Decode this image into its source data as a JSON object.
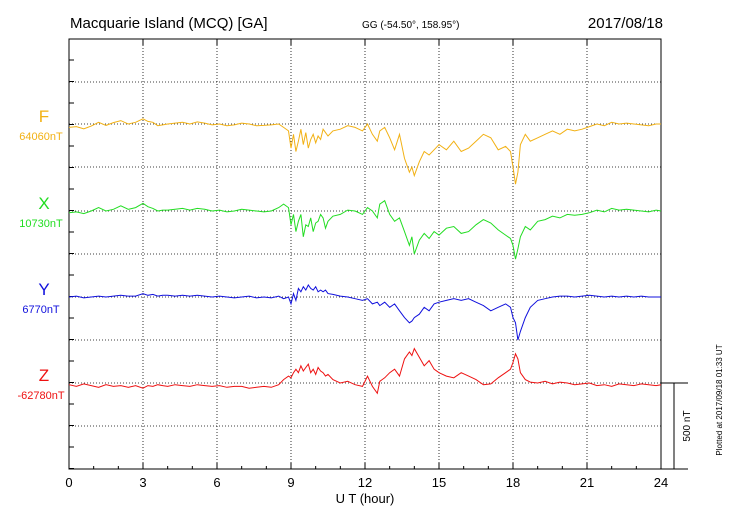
{
  "chart_data": {
    "type": "line",
    "station": "Macquarie Island (MCQ)  [GA]",
    "coords": "GG (-54.50°, 158.95°)",
    "date": "2017/08/18",
    "xlabel": "U T (hour)",
    "xlim": [
      0,
      24
    ],
    "xticks": [
      "0",
      "3",
      "6",
      "9",
      "12",
      "15",
      "18",
      "21",
      "24"
    ],
    "grid": true,
    "scale_label": "500 nT",
    "scale_nT": 500,
    "plotted_note": "Plotted at 2017/09/18 01:33 UT",
    "series": [
      {
        "name": "F",
        "base_label": "64060nT",
        "color": "#f2b114",
        "x": [
          0,
          0.3,
          0.6,
          0.9,
          1.2,
          1.5,
          1.8,
          2.1,
          2.4,
          2.7,
          3.0,
          3.2,
          3.4,
          3.6,
          3.8,
          4.0,
          4.3,
          4.6,
          4.9,
          5.2,
          5.5,
          5.8,
          6.1,
          6.4,
          6.7,
          7.0,
          7.3,
          7.6,
          7.9,
          8.2,
          8.5,
          8.7,
          8.9,
          9.0,
          9.1,
          9.2,
          9.3,
          9.4,
          9.5,
          9.6,
          9.7,
          9.8,
          9.9,
          10.0,
          10.1,
          10.2,
          10.3,
          10.4,
          10.5,
          10.7,
          11.0,
          11.3,
          11.6,
          11.9,
          12.1,
          12.3,
          12.5,
          12.6,
          12.8,
          13.0,
          13.2,
          13.4,
          13.6,
          13.8,
          13.9,
          14.0,
          14.2,
          14.4,
          14.6,
          14.8,
          15.0,
          15.3,
          15.6,
          15.9,
          16.2,
          16.5,
          16.8,
          17.1,
          17.4,
          17.7,
          17.9,
          18.0,
          18.1,
          18.2,
          18.3,
          18.5,
          18.7,
          19.0,
          19.3,
          19.6,
          19.9,
          20.2,
          20.5,
          20.8,
          21.1,
          21.4,
          21.7,
          22.0,
          22.3,
          22.6,
          22.9,
          23.2,
          23.5,
          23.8,
          24.0
        ],
        "values": [
          -20,
          -15,
          -28,
          -12,
          10,
          -8,
          8,
          20,
          0,
          10,
          30,
          15,
          10,
          -10,
          -5,
          0,
          5,
          10,
          0,
          12,
          5,
          -5,
          0,
          -10,
          -5,
          5,
          0,
          -10,
          -8,
          -5,
          0,
          -20,
          -40,
          -140,
          -60,
          -160,
          -100,
          -30,
          -120,
          -50,
          -140,
          -90,
          -60,
          -110,
          -70,
          -90,
          -30,
          -50,
          -70,
          -40,
          -30,
          -10,
          -20,
          -40,
          0,
          -60,
          -100,
          -40,
          -20,
          -80,
          -150,
          -60,
          -200,
          -280,
          -250,
          -300,
          -220,
          -160,
          -180,
          -150,
          -120,
          -150,
          -100,
          -160,
          -140,
          -100,
          -60,
          -80,
          -150,
          -130,
          -160,
          -250,
          -350,
          -280,
          -120,
          -60,
          -100,
          -80,
          -60,
          -40,
          -60,
          -30,
          -40,
          -30,
          -15,
          0,
          -10,
          10,
          0,
          5,
          0,
          -5,
          -10,
          0,
          0
        ]
      },
      {
        "name": "X",
        "base_label": "10730nT",
        "color": "#22dd22",
        "x": [
          0,
          0.3,
          0.6,
          0.9,
          1.2,
          1.5,
          1.8,
          2.1,
          2.4,
          2.7,
          3.0,
          3.2,
          3.4,
          3.6,
          3.8,
          4.0,
          4.3,
          4.6,
          4.9,
          5.2,
          5.5,
          5.8,
          6.1,
          6.4,
          6.7,
          7.0,
          7.3,
          7.6,
          7.9,
          8.2,
          8.5,
          8.7,
          8.9,
          9.0,
          9.1,
          9.2,
          9.3,
          9.4,
          9.5,
          9.6,
          9.7,
          9.8,
          9.9,
          10.0,
          10.1,
          10.2,
          10.3,
          10.4,
          10.5,
          10.7,
          11.0,
          11.3,
          11.6,
          11.9,
          12.1,
          12.3,
          12.5,
          12.6,
          12.8,
          13.0,
          13.2,
          13.4,
          13.6,
          13.8,
          13.9,
          14.0,
          14.2,
          14.4,
          14.6,
          14.8,
          15.0,
          15.3,
          15.6,
          15.9,
          16.2,
          16.5,
          16.8,
          17.1,
          17.4,
          17.7,
          17.9,
          18.0,
          18.1,
          18.2,
          18.3,
          18.5,
          18.7,
          19.0,
          19.3,
          19.6,
          19.9,
          20.2,
          20.5,
          20.8,
          21.1,
          21.4,
          21.7,
          22.0,
          22.3,
          22.6,
          22.9,
          23.2,
          23.5,
          23.8,
          24.0
        ],
        "values": [
          -10,
          -5,
          -15,
          0,
          20,
          0,
          10,
          30,
          10,
          20,
          45,
          25,
          15,
          0,
          5,
          5,
          10,
          15,
          5,
          15,
          10,
          0,
          5,
          -5,
          0,
          10,
          5,
          0,
          -5,
          0,
          20,
          40,
          20,
          -80,
          -20,
          -120,
          -60,
          -20,
          -150,
          -80,
          -90,
          -40,
          -120,
          -70,
          -60,
          -20,
          -40,
          -100,
          -60,
          -30,
          -20,
          5,
          0,
          -20,
          20,
          0,
          -40,
          40,
          60,
          -20,
          -60,
          -40,
          -120,
          -200,
          -150,
          -250,
          -170,
          -130,
          -160,
          -120,
          -140,
          -100,
          -90,
          -130,
          -120,
          -80,
          -50,
          -70,
          -110,
          -140,
          -160,
          -200,
          -280,
          -220,
          -150,
          -90,
          -110,
          -60,
          -50,
          -30,
          -40,
          -20,
          -25,
          -20,
          -10,
          5,
          -5,
          15,
          5,
          10,
          5,
          0,
          -5,
          5,
          0
        ]
      },
      {
        "name": "Y",
        "base_label": "6770nT",
        "color": "#1010dd",
        "x": [
          0,
          0.3,
          0.6,
          0.9,
          1.2,
          1.5,
          1.8,
          2.1,
          2.4,
          2.7,
          3.0,
          3.2,
          3.4,
          3.6,
          3.8,
          4.0,
          4.3,
          4.6,
          4.9,
          5.2,
          5.5,
          5.8,
          6.1,
          6.4,
          6.7,
          7.0,
          7.3,
          7.6,
          7.9,
          8.2,
          8.5,
          8.7,
          8.9,
          9.0,
          9.1,
          9.2,
          9.3,
          9.4,
          9.5,
          9.6,
          9.7,
          9.8,
          9.9,
          10.0,
          10.1,
          10.2,
          10.3,
          10.4,
          10.5,
          10.7,
          11.0,
          11.3,
          11.6,
          11.9,
          12.1,
          12.3,
          12.5,
          12.6,
          12.8,
          13.0,
          13.2,
          13.4,
          13.6,
          13.8,
          13.9,
          14.0,
          14.2,
          14.4,
          14.6,
          14.8,
          15.0,
          15.3,
          15.6,
          15.9,
          16.2,
          16.5,
          16.8,
          17.1,
          17.4,
          17.7,
          17.9,
          18.0,
          18.1,
          18.2,
          18.3,
          18.5,
          18.7,
          19.0,
          19.3,
          19.6,
          19.9,
          20.2,
          20.5,
          20.8,
          21.1,
          21.4,
          21.7,
          22.0,
          22.3,
          22.6,
          22.9,
          23.2,
          23.5,
          23.8,
          24.0
        ],
        "values": [
          0,
          5,
          -5,
          0,
          5,
          0,
          5,
          10,
          5,
          5,
          20,
          10,
          15,
          5,
          10,
          10,
          5,
          10,
          5,
          10,
          5,
          0,
          5,
          0,
          -5,
          0,
          5,
          -5,
          0,
          -5,
          5,
          -10,
          0,
          -40,
          20,
          -20,
          50,
          30,
          60,
          40,
          70,
          50,
          40,
          60,
          30,
          40,
          30,
          40,
          20,
          15,
          5,
          0,
          -10,
          -20,
          -10,
          -40,
          -30,
          -50,
          -30,
          -60,
          -40,
          -80,
          -120,
          -150,
          -140,
          -120,
          -100,
          -60,
          -80,
          -40,
          -30,
          -20,
          -10,
          -20,
          -10,
          -30,
          -50,
          -80,
          -60,
          -40,
          -60,
          -120,
          -150,
          -250,
          -200,
          -120,
          -60,
          -20,
          -10,
          0,
          5,
          5,
          0,
          5,
          10,
          5,
          0,
          5,
          0,
          5,
          0,
          5,
          0,
          0,
          0
        ]
      },
      {
        "name": "Z",
        "base_label": "-62780nT",
        "color": "#ee1111",
        "x": [
          0,
          0.3,
          0.6,
          0.9,
          1.2,
          1.5,
          1.8,
          2.1,
          2.4,
          2.7,
          3.0,
          3.2,
          3.4,
          3.6,
          3.8,
          4.0,
          4.3,
          4.6,
          4.9,
          5.2,
          5.5,
          5.8,
          6.1,
          6.4,
          6.7,
          7.0,
          7.3,
          7.6,
          7.9,
          8.2,
          8.5,
          8.7,
          8.9,
          9.0,
          9.1,
          9.2,
          9.3,
          9.4,
          9.5,
          9.6,
          9.7,
          9.8,
          9.9,
          10.0,
          10.1,
          10.2,
          10.3,
          10.4,
          10.5,
          10.7,
          11.0,
          11.3,
          11.6,
          11.9,
          12.1,
          12.3,
          12.5,
          12.6,
          12.8,
          13.0,
          13.2,
          13.4,
          13.6,
          13.8,
          13.9,
          14.0,
          14.2,
          14.4,
          14.6,
          14.8,
          15.0,
          15.3,
          15.6,
          15.9,
          16.2,
          16.5,
          16.8,
          17.1,
          17.4,
          17.7,
          17.9,
          18.0,
          18.1,
          18.2,
          18.3,
          18.5,
          18.7,
          19.0,
          19.3,
          19.6,
          19.9,
          20.2,
          20.5,
          20.8,
          21.1,
          21.4,
          21.7,
          22.0,
          22.3,
          22.6,
          22.9,
          23.2,
          23.5,
          23.8,
          24.0
        ],
        "values": [
          -10,
          -20,
          -5,
          -15,
          -25,
          -10,
          -20,
          -15,
          -25,
          -15,
          -30,
          -15,
          -20,
          -10,
          -15,
          -20,
          -10,
          -15,
          -20,
          -10,
          -15,
          -20,
          -15,
          -25,
          -20,
          -20,
          -30,
          -25,
          -20,
          -25,
          -10,
          20,
          40,
          30,
          60,
          80,
          60,
          100,
          70,
          90,
          110,
          60,
          80,
          50,
          90,
          70,
          60,
          40,
          50,
          20,
          0,
          10,
          -10,
          -20,
          40,
          -20,
          -60,
          10,
          30,
          60,
          80,
          40,
          140,
          180,
          160,
          200,
          150,
          100,
          130,
          80,
          60,
          40,
          30,
          60,
          40,
          20,
          -10,
          -5,
          30,
          60,
          80,
          120,
          170,
          140,
          60,
          20,
          5,
          0,
          10,
          -5,
          5,
          0,
          -10,
          -5,
          0,
          -15,
          -10,
          -20,
          -5,
          -10,
          -15,
          -5,
          -10,
          -15,
          -10
        ]
      }
    ]
  }
}
